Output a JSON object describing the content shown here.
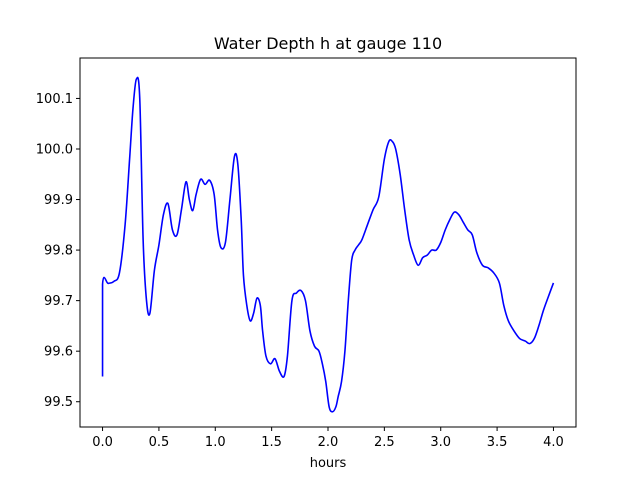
{
  "chart_data": {
    "type": "line",
    "title": "Water Depth h at gauge 110",
    "xlabel": "hours",
    "ylabel": "",
    "xlim": [
      -0.2,
      4.2
    ],
    "ylim": [
      99.45,
      100.18
    ],
    "xticks": [
      0.0,
      0.5,
      1.0,
      1.5,
      2.0,
      2.5,
      3.0,
      3.5,
      4.0
    ],
    "xtick_labels": [
      "0.0",
      "0.5",
      "1.0",
      "1.5",
      "2.0",
      "2.5",
      "3.0",
      "3.5",
      "4.0"
    ],
    "yticks": [
      99.5,
      99.6,
      99.7,
      99.8,
      99.9,
      100.0,
      100.1
    ],
    "ytick_labels": [
      "99.5",
      "99.6",
      "99.7",
      "99.8",
      "99.9",
      "100.0",
      "100.1"
    ],
    "grid": false,
    "series": [
      {
        "color": "#0000ff",
        "x": [
          0.0,
          0.0,
          0.05,
          0.1,
          0.15,
          0.2,
          0.24,
          0.27,
          0.3,
          0.33,
          0.36,
          0.39,
          0.42,
          0.46,
          0.5,
          0.54,
          0.58,
          0.62,
          0.66,
          0.7,
          0.74,
          0.77,
          0.8,
          0.83,
          0.87,
          0.91,
          0.95,
          0.99,
          1.02,
          1.05,
          1.09,
          1.13,
          1.17,
          1.2,
          1.23,
          1.25,
          1.28,
          1.31,
          1.34,
          1.37,
          1.4,
          1.42,
          1.45,
          1.49,
          1.53,
          1.57,
          1.61,
          1.64,
          1.68,
          1.72,
          1.76,
          1.8,
          1.84,
          1.88,
          1.92,
          1.95,
          1.98,
          2.01,
          2.04,
          2.07,
          2.09,
          2.12,
          2.15,
          2.18,
          2.21,
          2.24,
          2.27,
          2.3,
          2.35,
          2.4,
          2.45,
          2.5,
          2.54,
          2.57,
          2.6,
          2.64,
          2.68,
          2.72,
          2.76,
          2.8,
          2.84,
          2.88,
          2.92,
          2.96,
          3.0,
          3.04,
          3.08,
          3.12,
          3.16,
          3.2,
          3.24,
          3.28,
          3.32,
          3.37,
          3.42,
          3.47,
          3.52,
          3.56,
          3.6,
          3.65,
          3.7,
          3.75,
          3.79,
          3.83,
          3.87,
          3.91,
          3.95,
          4.0
        ],
        "y": [
          99.55,
          99.732,
          99.734,
          99.738,
          99.755,
          99.85,
          99.98,
          100.08,
          100.138,
          100.1,
          99.82,
          99.7,
          99.675,
          99.76,
          99.81,
          99.87,
          99.892,
          99.84,
          99.83,
          99.88,
          99.935,
          99.9,
          99.878,
          99.91,
          99.94,
          99.93,
          99.938,
          99.91,
          99.84,
          99.805,
          99.815,
          99.9,
          99.985,
          99.97,
          99.86,
          99.75,
          99.69,
          99.66,
          99.675,
          99.705,
          99.69,
          99.64,
          99.59,
          99.575,
          99.585,
          99.56,
          99.55,
          99.59,
          99.7,
          99.715,
          99.72,
          99.7,
          99.64,
          99.61,
          99.6,
          99.575,
          99.54,
          99.49,
          99.48,
          99.49,
          99.51,
          99.54,
          99.6,
          99.7,
          99.78,
          99.8,
          99.81,
          99.82,
          99.85,
          99.88,
          99.905,
          99.98,
          100.015,
          100.015,
          100.0,
          99.95,
          99.88,
          99.82,
          99.79,
          99.77,
          99.785,
          99.79,
          99.8,
          99.8,
          99.815,
          99.84,
          99.86,
          99.875,
          99.87,
          99.855,
          99.84,
          99.83,
          99.795,
          99.77,
          99.765,
          99.755,
          99.735,
          99.69,
          99.66,
          99.64,
          99.625,
          99.62,
          99.615,
          99.625,
          99.65,
          99.68,
          99.705,
          99.735
        ]
      }
    ]
  }
}
